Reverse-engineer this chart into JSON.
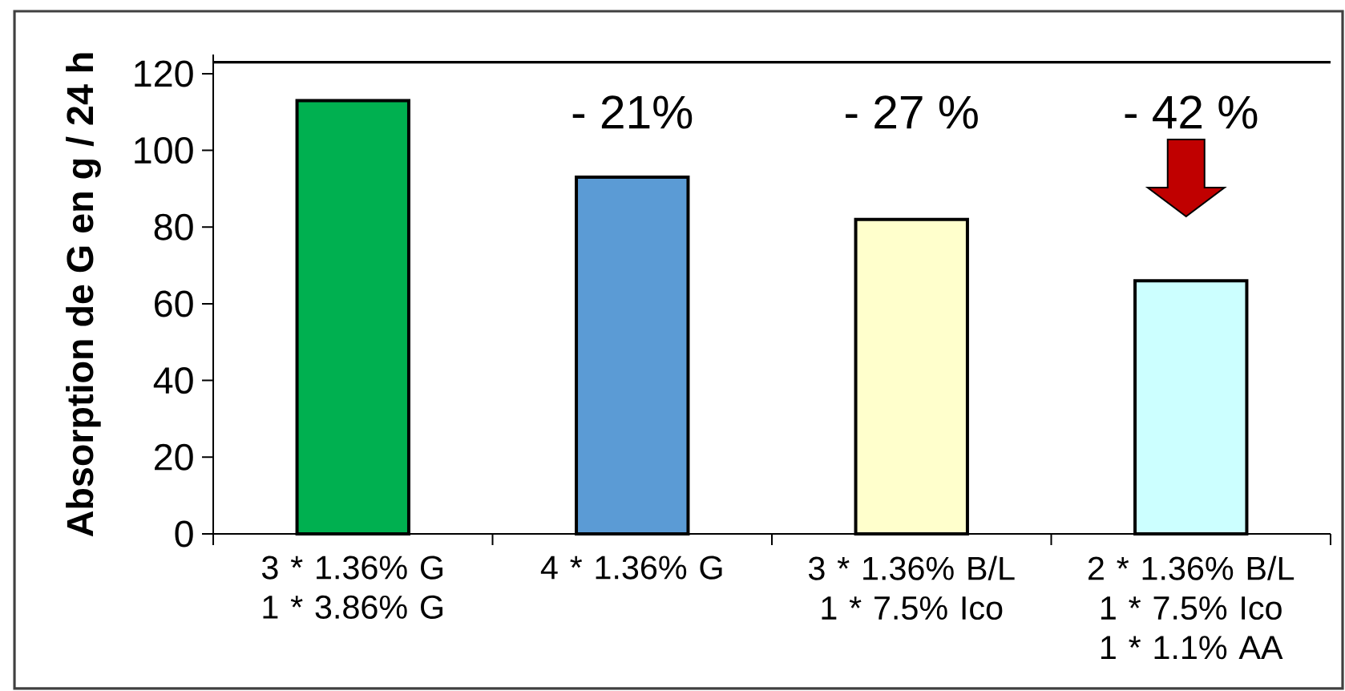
{
  "chart_data": {
    "type": "bar",
    "ylabel": "Absorption de G en g / 24 h",
    "categories": [
      "3 * 1.36% G 1 * 3.86% G",
      "4 * 1.36% G",
      "3 * 1.36% B/L 1 * 7.5% Ico",
      "2 * 1.36% B/L 1 * 7.5% Ico 1 * 1.1% AA"
    ],
    "values": [
      113,
      93,
      82,
      66
    ],
    "colors": [
      "#00b050",
      "#5b9bd5",
      "#ffffcc",
      "#ccffff"
    ],
    "ylim": [
      0,
      125
    ],
    "yticks": [
      0,
      20,
      40,
      60,
      80,
      100,
      120
    ],
    "ref_lines": [
      {
        "axis": "y",
        "value": 123
      }
    ],
    "annotations": [
      "- 21%",
      "- 27 %",
      "- 42 %"
    ]
  }
}
